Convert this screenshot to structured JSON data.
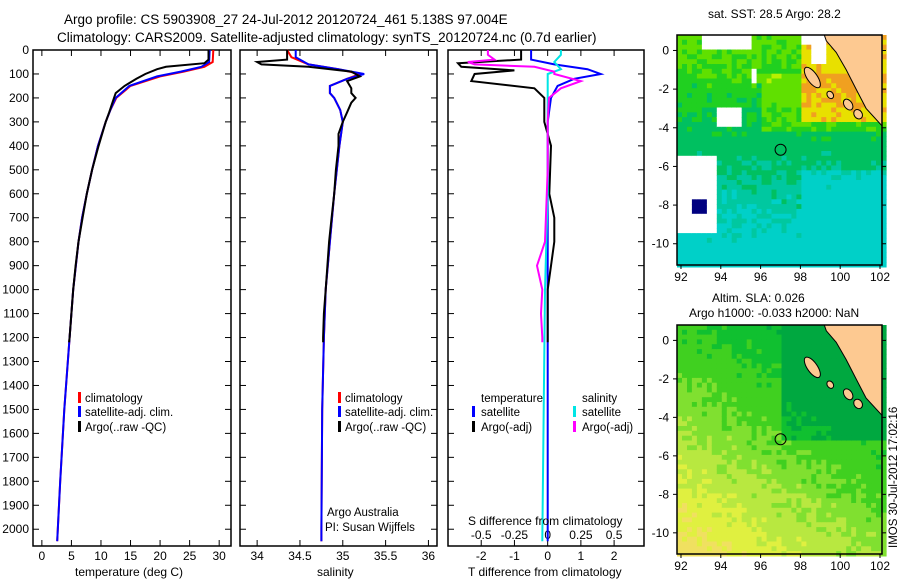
{
  "title_line1": "Argo profile: CS 5903908_27 24-Jul-2012 20120724_461 5.138S 97.004E",
  "title_line2": "Climatology: CARS2009. Satellite-adjusted climatology: synTS_20120724.nc (0.7d earlier)",
  "side_stamp": "IMOS 30-Jul-2012 17:02:16",
  "credit_line1": "Argo Australia",
  "credit_line2": "PI: Susan Wijffels",
  "colors": {
    "climatology": "#ff0000",
    "satellite": "#0000ff",
    "argo": "#000000",
    "sal_satellite": "#00e5e5",
    "sal_argo": "#ff00ff"
  },
  "chart_data": [
    {
      "type": "line",
      "name": "temperature-profile",
      "xlabel": "temperature (deg C)",
      "ylabel": "",
      "xlim": [
        -1.5,
        32
      ],
      "ylim": [
        2070,
        0
      ],
      "xticks": [
        0,
        5,
        10,
        15,
        20,
        25,
        30
      ],
      "yticks": [
        0,
        100,
        200,
        300,
        400,
        500,
        600,
        700,
        800,
        900,
        1000,
        1100,
        1200,
        1300,
        1400,
        1500,
        1600,
        1700,
        1800,
        1900,
        2000
      ],
      "legend": [
        "climatology",
        "satellite-adj. clim.",
        "Argo(..raw -QC)"
      ],
      "series": [
        {
          "name": "climatology",
          "color": "#ff0000",
          "depth": [
            0,
            50,
            70,
            90,
            110,
            150,
            200,
            250,
            300,
            400,
            500,
            600,
            700,
            800,
            1000,
            1200,
            1500,
            1800,
            2000,
            2050
          ],
          "values": [
            29.0,
            28.9,
            27.5,
            24,
            20,
            15,
            12.6,
            11.6,
            10.8,
            9.5,
            8.5,
            7.6,
            6.8,
            6.2,
            5.3,
            4.7,
            3.8,
            3.1,
            2.7,
            2.6
          ]
        },
        {
          "name": "satellite-adj. clim.",
          "color": "#0000ff",
          "depth": [
            0,
            50,
            70,
            90,
            110,
            150,
            200,
            250,
            300,
            400,
            500,
            600,
            700,
            800,
            1000,
            1200,
            1500,
            1800,
            2000,
            2050
          ],
          "values": [
            28.4,
            28.3,
            27,
            23.5,
            19.5,
            14.8,
            12.5,
            11.6,
            10.8,
            9.5,
            8.5,
            7.6,
            6.8,
            6.2,
            5.3,
            4.7,
            3.8,
            3.1,
            2.7,
            2.6
          ]
        },
        {
          "name": "Argo(..raw -QC)",
          "color": "#000000",
          "depth": [
            0,
            40,
            55,
            70,
            80,
            100,
            120,
            150,
            180,
            200,
            230,
            260,
            300,
            400,
            500,
            600,
            700,
            800,
            900,
            1000,
            1100,
            1200,
            1220
          ],
          "values": [
            28.2,
            28.2,
            27.5,
            21,
            19.5,
            17.5,
            16,
            14,
            12.5,
            12.2,
            11.8,
            11.4,
            10.8,
            9.6,
            8.5,
            7.6,
            6.9,
            6.2,
            5.7,
            5.3,
            5.0,
            4.7,
            4.6
          ]
        }
      ]
    },
    {
      "type": "line",
      "name": "salinity-profile",
      "xlabel": "salinity",
      "xlim": [
        33.8,
        36.1
      ],
      "ylim": [
        2070,
        0
      ],
      "xticks": [
        34,
        34.5,
        35,
        35.5,
        36
      ],
      "legend": [
        "climatology",
        "satellite-adj. clim.",
        "Argo(..raw -QC)"
      ],
      "series": [
        {
          "name": "climatology",
          "color": "#ff0000",
          "depth": [
            0,
            30,
            60,
            80,
            100,
            120,
            150,
            180,
            200,
            250,
            300,
            400,
            500,
            600,
            800,
            1000,
            1200,
            1500,
            2000,
            2050
          ],
          "values": [
            34.35,
            34.4,
            34.6,
            34.95,
            35.2,
            35.05,
            34.85,
            34.85,
            34.9,
            34.97,
            35.0,
            34.96,
            34.93,
            34.9,
            34.85,
            34.8,
            34.78,
            34.76,
            34.75,
            34.75
          ]
        },
        {
          "name": "satellite-adj. clim.",
          "color": "#0000ff",
          "depth": [
            0,
            30,
            60,
            80,
            100,
            120,
            150,
            180,
            200,
            250,
            300,
            400,
            500,
            600,
            800,
            1000,
            1200,
            1500,
            2000,
            2050
          ],
          "values": [
            34.45,
            34.45,
            34.6,
            34.95,
            35.25,
            35.05,
            34.85,
            34.85,
            34.9,
            34.97,
            35.0,
            34.96,
            34.93,
            34.9,
            34.85,
            34.8,
            34.78,
            34.76,
            34.75,
            34.75
          ]
        },
        {
          "name": "Argo(..raw -QC)",
          "color": "#000000",
          "depth": [
            0,
            40,
            50,
            60,
            70,
            90,
            110,
            130,
            160,
            180,
            200,
            220,
            260,
            300,
            350,
            400,
            500,
            600,
            700,
            800,
            900,
            1000,
            1100,
            1200,
            1220
          ],
          "values": [
            34.35,
            34.35,
            34.0,
            34.05,
            34.6,
            35.1,
            35.2,
            35.05,
            35.1,
            35.1,
            35.15,
            35.1,
            35.05,
            35.0,
            34.95,
            34.95,
            34.92,
            34.9,
            34.87,
            34.84,
            34.82,
            34.8,
            34.78,
            34.77,
            34.77
          ]
        }
      ]
    },
    {
      "type": "line",
      "name": "difference-profile",
      "xlabel": "T difference from climatology",
      "top_label": "S difference from climatology",
      "xlim": [
        -3,
        2.9
      ],
      "ylim": [
        2070,
        0
      ],
      "xticks": [
        -2,
        -1,
        0,
        1,
        2
      ],
      "top_ticks": [
        "-0.5",
        "-0.25",
        "0",
        "0.25",
        "0.5"
      ],
      "legend_headers": [
        "temperature",
        "salinity"
      ],
      "legend": [
        "satellite",
        "Argo(-adj)",
        "satellite",
        "Argo(-adj)"
      ],
      "series": [
        {
          "name": "temperature satellite",
          "color": "#0000ff",
          "depth": [
            0,
            40,
            60,
            80,
            100,
            120,
            150,
            200,
            300,
            500,
            1000,
            2050
          ],
          "values": [
            -0.5,
            -0.5,
            0.2,
            1.2,
            1.6,
            0.8,
            0.3,
            0.1,
            0,
            0,
            0,
            0
          ]
        },
        {
          "name": "temperature Argo(-adj)",
          "color": "#000000",
          "depth": [
            0,
            40,
            55,
            70,
            85,
            100,
            130,
            160,
            200,
            260,
            300,
            400,
            600,
            700,
            800,
            900,
            1000,
            1100,
            1200,
            1220
          ],
          "values": [
            -0.8,
            -0.8,
            -2.7,
            -2.6,
            -1.0,
            -2.2,
            -2.3,
            -0.4,
            -0.1,
            -0.1,
            -0.1,
            0.1,
            0.05,
            0.2,
            0.2,
            0.1,
            0,
            0,
            0,
            0
          ]
        },
        {
          "name": "salinity satellite",
          "color": "#00e5e5",
          "depth": [
            0,
            20,
            50,
            80,
            100,
            150,
            300,
            600,
            1000,
            1500,
            2050
          ],
          "values": [
            0.1,
            0.1,
            0.05,
            0.1,
            0,
            0,
            0,
            0,
            -0.02,
            -0.03,
            -0.04
          ]
        },
        {
          "name": "salinity Argo(-adj)",
          "color": "#ff00ff",
          "depth": [
            0,
            20,
            40,
            50,
            60,
            70,
            90,
            100,
            130,
            160,
            200,
            300,
            500,
            800,
            900,
            1000,
            1100,
            1200,
            1220
          ],
          "values": [
            -0.45,
            -0.45,
            -0.4,
            -0.6,
            -0.55,
            -0.1,
            0.05,
            0.05,
            0.25,
            0.1,
            0.01,
            0,
            0,
            -0.02,
            -0.08,
            -0.04,
            -0.05,
            -0.04,
            -0.04
          ]
        }
      ]
    },
    {
      "type": "heatmap",
      "name": "sst-map",
      "title": "sat. SST: 28.5 Argo: 28.2",
      "xlim": [
        91.8,
        102.1
      ],
      "ylim": [
        -11.1,
        0.8
      ],
      "xticks": [
        92,
        94,
        96,
        98,
        100,
        102
      ],
      "yticks": [
        0,
        -2,
        -4,
        -6,
        -8,
        -10
      ],
      "argo_position": {
        "lon": 97.004,
        "lat": -5.138
      }
    },
    {
      "type": "heatmap",
      "name": "sla-map",
      "title_line1": "Altim. SLA: 0.026",
      "title_line2": "Argo h1000: -0.033 h2000: NaN",
      "xlim": [
        91.8,
        102.1
      ],
      "ylim": [
        -11.1,
        0.8
      ],
      "xticks": [
        92,
        94,
        96,
        98,
        100,
        102
      ],
      "yticks": [
        0,
        -2,
        -4,
        -6,
        -8,
        -10
      ],
      "argo_position": {
        "lon": 97.004,
        "lat": -5.138
      }
    }
  ]
}
